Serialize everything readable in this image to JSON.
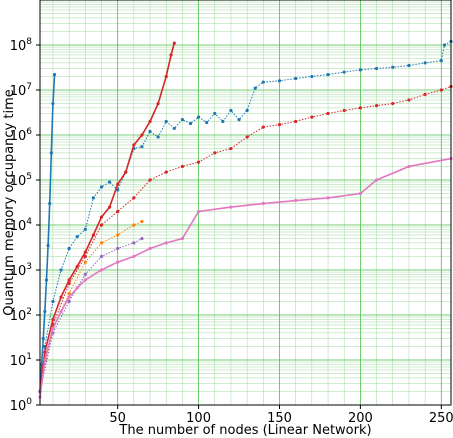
{
  "chart_data": {
    "type": "line",
    "title": "",
    "xlabel": "The number of nodes (Linear Network)",
    "ylabel": "Quantum memory occupancy time",
    "xlim": [
      2,
      256
    ],
    "ylim": [
      1,
      1000000000
    ],
    "yscale": "log",
    "grid": true,
    "legend": "none",
    "x_ticks": [
      {
        "value": 50,
        "label": "50"
      },
      {
        "value": 100,
        "label": "100"
      },
      {
        "value": 150,
        "label": "150"
      },
      {
        "value": 200,
        "label": "200"
      },
      {
        "value": 250,
        "label": "250"
      }
    ],
    "y_ticks": [
      {
        "exp": 0,
        "base": "10",
        "sup": "0"
      },
      {
        "exp": 1,
        "base": "10",
        "sup": "1"
      },
      {
        "exp": 2,
        "base": "10",
        "sup": "2"
      },
      {
        "exp": 3,
        "base": "10",
        "sup": "3"
      },
      {
        "exp": 4,
        "base": "10",
        "sup": "4"
      },
      {
        "exp": 5,
        "base": "10",
        "sup": "5"
      },
      {
        "exp": 6,
        "base": "10",
        "sup": "6"
      },
      {
        "exp": 7,
        "base": "10",
        "sup": "7"
      },
      {
        "exp": 8,
        "base": "10",
        "sup": "8"
      }
    ],
    "series": [
      {
        "color": "#1f77b4",
        "style": "solid",
        "points": [
          [
            2,
            2
          ],
          [
            3,
            8
          ],
          [
            4,
            30
          ],
          [
            5,
            120
          ],
          [
            6,
            600
          ],
          [
            7,
            3500
          ],
          [
            8,
            30000
          ],
          [
            9,
            400000
          ],
          [
            10,
            5000000
          ],
          [
            11,
            22000000
          ]
        ]
      },
      {
        "color": "#1f77b4",
        "style": "dotted",
        "points": [
          [
            2,
            2
          ],
          [
            5,
            20
          ],
          [
            10,
            200
          ],
          [
            15,
            1000
          ],
          [
            20,
            3000
          ],
          [
            25,
            5500
          ],
          [
            30,
            8000
          ],
          [
            35,
            40000
          ],
          [
            40,
            70000
          ],
          [
            45,
            90000
          ],
          [
            50,
            60000
          ],
          [
            55,
            150000
          ],
          [
            60,
            500000
          ],
          [
            65,
            550000
          ],
          [
            70,
            1200000
          ],
          [
            75,
            900000
          ],
          [
            80,
            2000000
          ],
          [
            85,
            1400000
          ],
          [
            90,
            2200000
          ],
          [
            95,
            1800000
          ],
          [
            100,
            2500000
          ],
          [
            105,
            1900000
          ],
          [
            110,
            3000000
          ],
          [
            115,
            2000000
          ],
          [
            120,
            3500000
          ],
          [
            125,
            2200000
          ],
          [
            130,
            3500000
          ],
          [
            135,
            11000000
          ],
          [
            140,
            15000000
          ],
          [
            150,
            16000000
          ],
          [
            160,
            18000000
          ],
          [
            170,
            20000000
          ],
          [
            180,
            22000000
          ],
          [
            190,
            25000000
          ],
          [
            200,
            28000000
          ],
          [
            210,
            30000000
          ],
          [
            220,
            32000000
          ],
          [
            230,
            35000000
          ],
          [
            240,
            40000000
          ],
          [
            250,
            45000000
          ],
          [
            252,
            100000000
          ],
          [
            256,
            120000000
          ]
        ]
      },
      {
        "color": "#d62728",
        "style": "solid",
        "points": [
          [
            2,
            2
          ],
          [
            5,
            15
          ],
          [
            10,
            80
          ],
          [
            15,
            250
          ],
          [
            20,
            600
          ],
          [
            25,
            1200
          ],
          [
            30,
            2500
          ],
          [
            35,
            6000
          ],
          [
            40,
            15000
          ],
          [
            45,
            25000
          ],
          [
            50,
            80000
          ],
          [
            55,
            150000
          ],
          [
            60,
            600000
          ],
          [
            65,
            1000000
          ],
          [
            70,
            2000000
          ],
          [
            75,
            5000000
          ],
          [
            80,
            20000000
          ],
          [
            83,
            60000000
          ],
          [
            85,
            110000000
          ]
        ]
      },
      {
        "color": "#d62728",
        "style": "dotted",
        "points": [
          [
            2,
            2
          ],
          [
            10,
            60
          ],
          [
            20,
            500
          ],
          [
            30,
            2000
          ],
          [
            40,
            10000
          ],
          [
            50,
            20000
          ],
          [
            60,
            40000
          ],
          [
            70,
            100000
          ],
          [
            80,
            150000
          ],
          [
            90,
            200000
          ],
          [
            100,
            250000
          ],
          [
            110,
            400000
          ],
          [
            120,
            500000
          ],
          [
            130,
            900000
          ],
          [
            140,
            1500000
          ],
          [
            150,
            1700000
          ],
          [
            160,
            2000000
          ],
          [
            170,
            2500000
          ],
          [
            180,
            3000000
          ],
          [
            190,
            3500000
          ],
          [
            200,
            4000000
          ],
          [
            210,
            4500000
          ],
          [
            220,
            5000000
          ],
          [
            230,
            6000000
          ],
          [
            240,
            8000000
          ],
          [
            250,
            10000000
          ],
          [
            256,
            12000000
          ]
        ]
      },
      {
        "color": "#ff7f0e",
        "style": "dotted",
        "points": [
          [
            2,
            2
          ],
          [
            10,
            50
          ],
          [
            20,
            300
          ],
          [
            30,
            1500
          ],
          [
            40,
            4000
          ],
          [
            50,
            6000
          ],
          [
            60,
            10000
          ],
          [
            65,
            12000
          ]
        ]
      },
      {
        "color": "#9467bd",
        "style": "dotted",
        "points": [
          [
            2,
            2
          ],
          [
            10,
            40
          ],
          [
            20,
            200
          ],
          [
            30,
            800
          ],
          [
            40,
            2000
          ],
          [
            50,
            3000
          ],
          [
            60,
            4000
          ],
          [
            65,
            5000
          ]
        ]
      },
      {
        "color": "#e377c2",
        "style": "solid",
        "points": [
          [
            2,
            1.5
          ],
          [
            5,
            10
          ],
          [
            10,
            50
          ],
          [
            15,
            120
          ],
          [
            20,
            250
          ],
          [
            25,
            400
          ],
          [
            30,
            600
          ],
          [
            40,
            1000
          ],
          [
            50,
            1500
          ],
          [
            60,
            2000
          ],
          [
            70,
            3000
          ],
          [
            80,
            4000
          ],
          [
            90,
            5000
          ],
          [
            100,
            20000
          ],
          [
            120,
            25000
          ],
          [
            140,
            30000
          ],
          [
            160,
            35000
          ],
          [
            180,
            40000
          ],
          [
            200,
            50000
          ],
          [
            210,
            100000
          ],
          [
            230,
            200000
          ],
          [
            256,
            300000
          ]
        ]
      }
    ]
  }
}
